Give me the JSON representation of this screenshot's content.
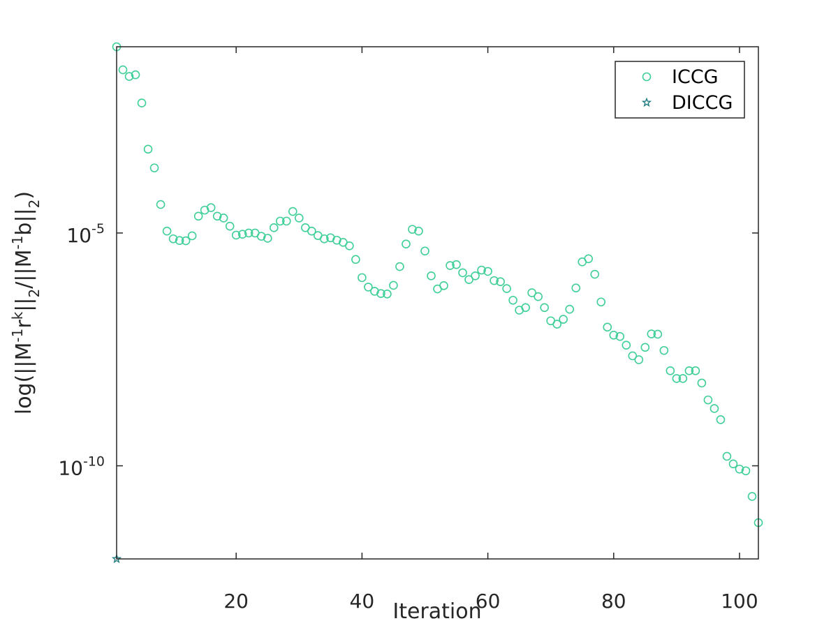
{
  "colors": {
    "iccg": "#3ecf97",
    "diccg": "#1f7a80",
    "axis": "#262626"
  },
  "chart_data": {
    "type": "scatter",
    "title": "",
    "xlabel": "Iteration",
    "ylabel_parts": [
      "log(||M",
      "-1",
      "r",
      "k",
      "||",
      "2",
      "/||M",
      "-1",
      "b||",
      "2",
      ")"
    ],
    "xlim": [
      1,
      103
    ],
    "ylim": [
      1e-12,
      0.1
    ],
    "yscale": "log",
    "xticks": [
      20,
      40,
      60,
      80,
      100
    ],
    "yticks": [
      {
        "base": "10",
        "exp": "-5",
        "value": 1e-05
      },
      {
        "base": "10",
        "exp": "-10",
        "value": 1e-10
      }
    ],
    "legend": {
      "position": "top-right",
      "entries": [
        "ICCG",
        "DICCG"
      ]
    },
    "grid": false,
    "series": [
      {
        "name": "ICCG",
        "marker": "circle",
        "x": [
          1,
          2,
          3,
          4,
          5,
          6,
          7,
          8,
          9,
          10,
          11,
          12,
          13,
          14,
          15,
          16,
          17,
          18,
          19,
          20,
          21,
          22,
          23,
          24,
          25,
          26,
          27,
          28,
          29,
          30,
          31,
          32,
          33,
          34,
          35,
          36,
          37,
          38,
          39,
          40,
          41,
          42,
          43,
          44,
          45,
          46,
          47,
          48,
          49,
          50,
          51,
          52,
          53,
          54,
          55,
          56,
          57,
          58,
          59,
          60,
          61,
          62,
          63,
          64,
          65,
          66,
          67,
          68,
          69,
          70,
          71,
          72,
          73,
          74,
          75,
          76,
          77,
          78,
          79,
          80,
          81,
          82,
          83,
          84,
          85,
          86,
          87,
          88,
          89,
          90,
          91,
          92,
          93,
          94,
          95,
          96,
          97,
          98,
          99,
          100,
          101,
          102,
          103
        ],
        "y": [
          0.1,
          0.032,
          0.023,
          0.025,
          0.0062,
          0.00063,
          0.00025,
          4.1e-05,
          1.1e-05,
          7.5e-06,
          6.9e-06,
          6.8e-06,
          8.7e-06,
          2.3e-05,
          3.1e-05,
          3.5e-05,
          2.3e-05,
          2.1e-05,
          1.4e-05,
          9e-06,
          9.4e-06,
          1e-05,
          1e-05,
          8.5e-06,
          7.7e-06,
          1.3e-05,
          1.8e-05,
          1.8e-05,
          2.9e-05,
          2.1e-05,
          1.3e-05,
          1.1e-05,
          8.8e-06,
          7.5e-06,
          7.9e-06,
          7e-06,
          6.3e-06,
          5.3e-06,
          2.7e-06,
          1.1e-06,
          6.9e-07,
          5.6e-07,
          5e-07,
          4.9e-07,
          7.5e-07,
          1.9e-06,
          5.8e-06,
          1.2e-05,
          1.1e-05,
          4.1e-06,
          1.2e-06,
          6.3e-07,
          7.4e-07,
          2e-06,
          2.1e-06,
          1.4e-06,
          1e-06,
          1.2e-06,
          1.6e-06,
          1.5e-06,
          9.5e-07,
          9e-07,
          6.4e-07,
          3.6e-07,
          2.2e-07,
          2.5e-07,
          5.2e-07,
          4.3e-07,
          2.5e-07,
          1.3e-07,
          1.1e-07,
          1.4e-07,
          2.3e-07,
          6.6e-07,
          2.4e-06,
          2.8e-06,
          1.3e-06,
          3.3e-07,
          9.5e-08,
          6.4e-08,
          6e-08,
          3.9e-08,
          2.3e-08,
          1.9e-08,
          3.5e-08,
          6.8e-08,
          6.7e-08,
          3e-08,
          1.1e-08,
          7.5e-09,
          7.5e-09,
          1.1e-08,
          1.1e-08,
          6e-09,
          2.6e-09,
          1.7e-09,
          9.8e-10,
          1.6e-10,
          1.1e-10,
          8.5e-11,
          7.8e-11,
          2.2e-11,
          6e-12
        ]
      },
      {
        "name": "DICCG",
        "marker": "star",
        "x": [
          1
        ],
        "y": [
          1e-12
        ]
      }
    ]
  }
}
